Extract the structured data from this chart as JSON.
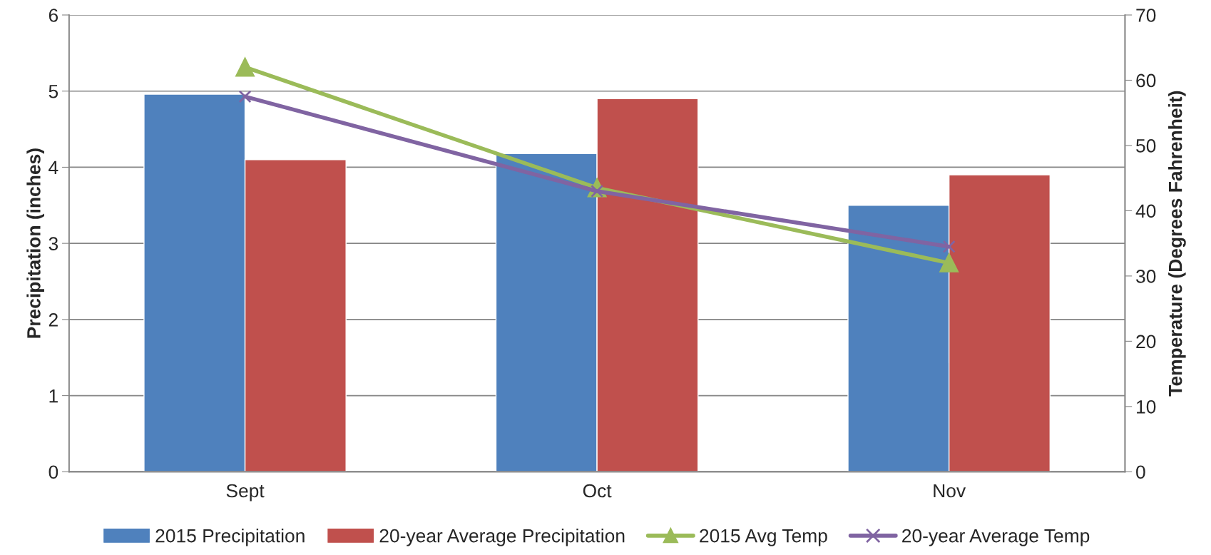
{
  "chart_data": {
    "type": "bar",
    "categories": [
      "Sept",
      "Oct",
      "Nov"
    ],
    "ylabel": "Precipitation (inches)",
    "y2label": "Temperature (Degrees Fahrenheit)",
    "ylim": [
      0,
      6
    ],
    "yticks": [
      0,
      1,
      2,
      3,
      4,
      5,
      6
    ],
    "y2lim": [
      0,
      70
    ],
    "y2ticks": [
      0,
      10,
      20,
      30,
      40,
      50,
      60,
      70
    ],
    "grid": "y",
    "legend": "bottom",
    "series": [
      {
        "name": "2015 Precipitation",
        "color": "#4f81bd",
        "values": [
          4.96,
          4.18,
          3.5
        ]
      },
      {
        "name": "20-year Average Precipitation",
        "color": "#c0504d",
        "values": [
          4.1,
          4.9,
          3.9
        ]
      },
      {
        "name": "2015 Avg Temp",
        "type": "line",
        "axis": "y2",
        "marker": "triangle",
        "color": "#9bbb59",
        "values": [
          62,
          43.5,
          32
        ]
      },
      {
        "name": "20-year Average Temp",
        "type": "line",
        "axis": "y2",
        "marker": "cross",
        "color": "#8064a2",
        "values": [
          57.5,
          43,
          34.5
        ]
      }
    ]
  }
}
